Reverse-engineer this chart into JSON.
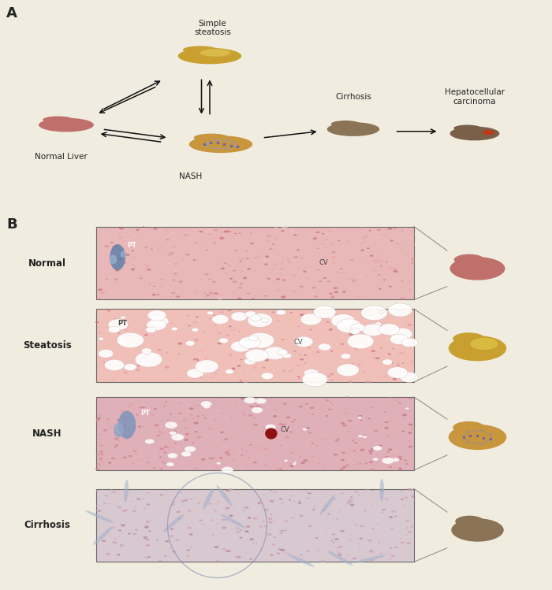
{
  "background_color": "#f0ece0",
  "fig_width": 7.0,
  "fig_height": 7.49,
  "panel_A_label": "A",
  "panel_B_label": "B",
  "labels_A": {
    "normal": "Normal Liver",
    "steatosis": "Simple\nsteatosis",
    "nash": "NASH",
    "cirrhosis": "Cirrhosis",
    "hcc": "Hepatocellular\ncarcinoma"
  },
  "labels_B": {
    "normal": "Normal",
    "steatosis": "Steatosis",
    "nash": "NASH",
    "cirrhosis": "Cirrhosis"
  },
  "label_PT": "PT",
  "label_CV": "CV",
  "liver_normal_color": "#c0706a",
  "liver_steatosis_color": "#c9a030",
  "liver_nash_color": "#c8963c",
  "liver_cirrhosis_color": "#8b7355",
  "liver_hcc_color": "#7a6048",
  "text_color": "#222222",
  "arrow_color": "#111111"
}
